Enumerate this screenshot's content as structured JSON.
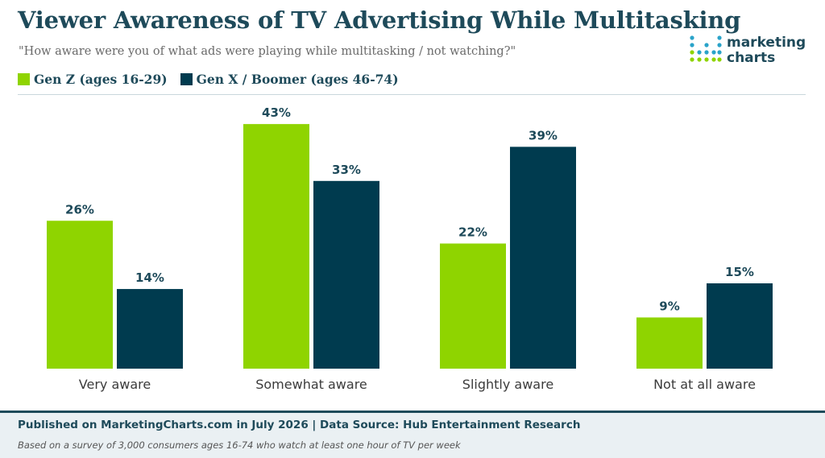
{
  "header": {
    "title": "Viewer Awareness of TV Advertising While Multitasking",
    "subtitle": "\"How aware were you of what ads were playing while multitasking / not watching?\""
  },
  "logo": {
    "line1": "marketing",
    "line2": "charts"
  },
  "colors": {
    "gen_z": "#8fd400",
    "gen_x_boomer": "#003b4f",
    "title": "#1e4a5a"
  },
  "chart_data": {
    "type": "bar",
    "title": "Viewer Awareness of TV Advertising While Multitasking",
    "categories": [
      "Very aware",
      "Somewhat aware",
      "Slightly aware",
      "Not at all aware"
    ],
    "series": [
      {
        "name": "Gen Z (ages 16-29)",
        "values": [
          26,
          43,
          22,
          9
        ],
        "labels": [
          "26%",
          "43%",
          "22%",
          "9%"
        ]
      },
      {
        "name": "Gen X / Boomer (ages 46-74)",
        "values": [
          14,
          33,
          39,
          15
        ],
        "labels": [
          "14%",
          "33%",
          "39%",
          "15%"
        ]
      }
    ],
    "unit": "%",
    "ylim": [
      0,
      45
    ],
    "legend": "top-left",
    "grid": false
  },
  "footer": {
    "published": "Published on MarketingCharts.com in July 2026 | Data Source: Hub Entertainment Research",
    "note": "Based on a survey of 3,000 consumers ages 16-74 who watch at least one hour of TV per week"
  }
}
